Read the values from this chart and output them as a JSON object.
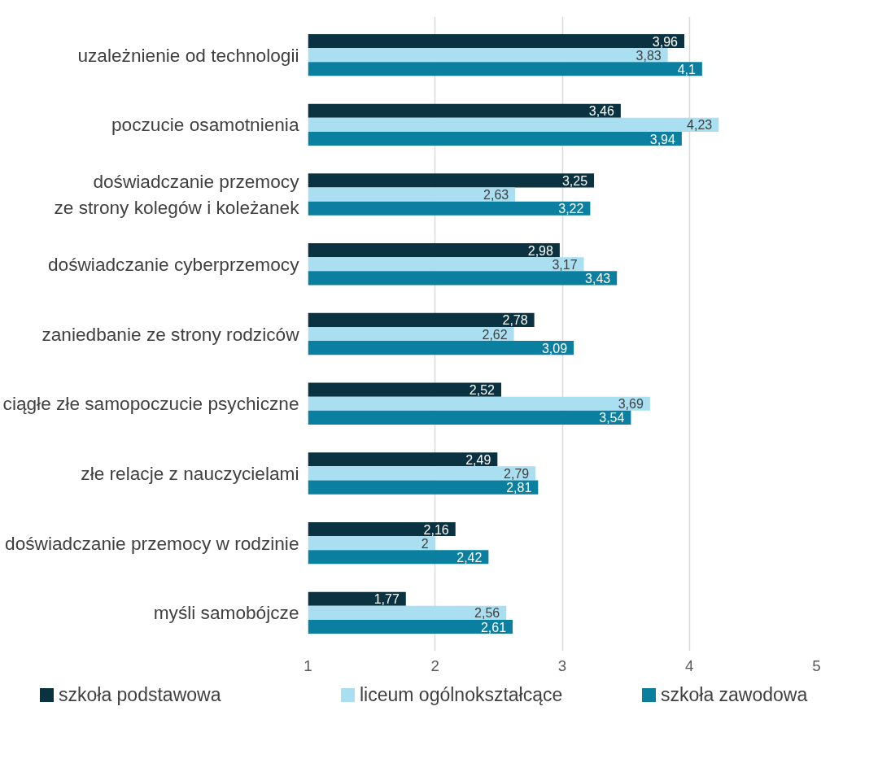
{
  "chart_data": {
    "type": "bar",
    "orientation": "horizontal",
    "categories": [
      "uzależnienie od technologii",
      "poczucie osamotnienia",
      "doświadczanie przemocy\nze strony kolegów i koleżanek",
      "doświadczanie cyberprzemocy",
      "zaniedbanie ze strony rodziców",
      "ciągłe złe samopoczucie psychiczne",
      "złe relacje z nauczycielami",
      "doświadczanie przemocy w rodzinie",
      "myśli samobójcze"
    ],
    "series": [
      {
        "name": "szkoła podstawowa",
        "color": "#0b3241",
        "values": [
          3.96,
          3.46,
          3.25,
          2.98,
          2.78,
          2.52,
          2.49,
          2.16,
          1.77
        ],
        "value_labels": [
          "3,96",
          "3,46",
          "3,25",
          "2,98",
          "2,78",
          "2,52",
          "2,49",
          "2,16",
          "1,77"
        ]
      },
      {
        "name": "liceum ogólnokształcące",
        "color": "#a9dff0",
        "values": [
          3.83,
          4.23,
          2.63,
          3.17,
          2.62,
          3.69,
          2.79,
          2,
          2.56
        ],
        "value_labels": [
          "3,83",
          "4,23",
          "2,63",
          "3,17",
          "2,62",
          "3,69",
          "2,79",
          "2",
          "2,56"
        ]
      },
      {
        "name": "szkoła zawodowa",
        "color": "#0a7fa0",
        "values": [
          4.1,
          3.94,
          3.22,
          3.43,
          3.09,
          3.54,
          2.81,
          2.42,
          2.61
        ],
        "value_labels": [
          "4,1",
          "3,94",
          "3,22",
          "3,43",
          "3,09",
          "3,54",
          "2,81",
          "2,42",
          "2,61"
        ]
      }
    ],
    "xlim": [
      1,
      5
    ],
    "xticks": [
      1,
      2,
      3,
      4,
      5
    ],
    "grid": "x",
    "legend": "bottom"
  }
}
